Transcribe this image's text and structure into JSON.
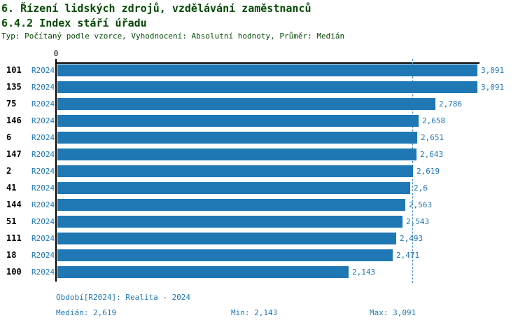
{
  "header": {
    "title_line1": "6. Řízení lidských zdrojů, vzdělávání zaměstnanců",
    "title_line2": "6.4.2 Index stáří úřadu",
    "meta": "Typ: Počítaný podle vzorce, Vyhodnocení: Absolutní hodnoty, Průměr: Medián"
  },
  "axis": {
    "zero_label": "0"
  },
  "chart_data": {
    "type": "bar",
    "orientation": "horizontal",
    "title": "6.4.2 Index stáří úřadu",
    "categories": [
      "101",
      "135",
      "75",
      "146",
      "6",
      "147",
      "2",
      "41",
      "144",
      "51",
      "111",
      "18",
      "100"
    ],
    "series": [
      {
        "name": "R2024",
        "values": [
          3.091,
          3.091,
          2.786,
          2.658,
          2.651,
          2.643,
          2.619,
          2.6,
          2.563,
          2.543,
          2.493,
          2.471,
          2.143
        ]
      }
    ],
    "value_labels": [
      "3,091",
      "3,091",
      "2,786",
      "2,658",
      "2,651",
      "2,643",
      "2,619",
      "2,6",
      "2,563",
      "2,543",
      "2,493",
      "2,471",
      "2,143"
    ],
    "row_series_label": "R2024",
    "xlim": [
      0,
      3.107
    ],
    "median": 2.619,
    "min": 2.143,
    "max": 3.091,
    "grid": false,
    "legend_position": "none"
  },
  "footer": {
    "period": "Období[R2024]: Realita - 2024",
    "median": "Medián: 2,619",
    "min": "Min: 2,143",
    "max": "Max: 3,091"
  },
  "colors": {
    "bar": "#1f77b4",
    "text_blue": "#1f77b4",
    "median_line": "#4a90c4",
    "title_green": "#064a06",
    "axis_black": "#000000"
  }
}
